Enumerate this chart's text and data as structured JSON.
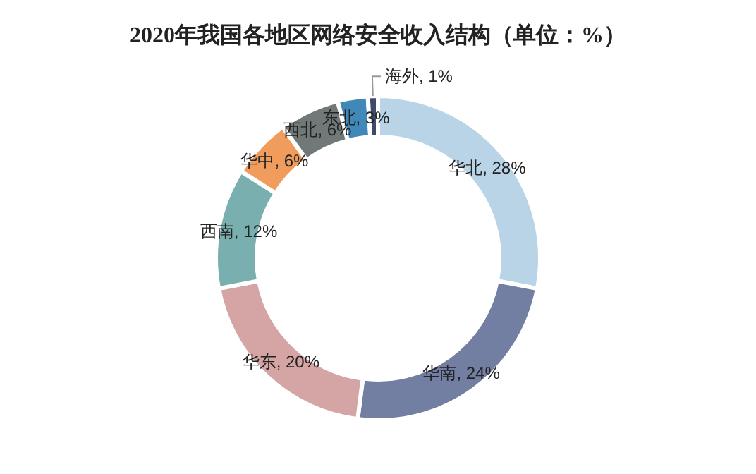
{
  "chart_data": {
    "type": "donut",
    "title": "2020年我国各地区网络安全收入结构（单位：%）",
    "categories": [
      "华北",
      "华南",
      "华东",
      "西南",
      "华中",
      "西北",
      "东北",
      "海外"
    ],
    "values": [
      28,
      24,
      20,
      12,
      6,
      6,
      3,
      1
    ],
    "value_labels": [
      "28%",
      "24%",
      "20%",
      "12%",
      "6%",
      "6%",
      "3%",
      "1%"
    ],
    "colors": [
      "#b8d4e6",
      "#737ea3",
      "#d4a5a4",
      "#7aafaf",
      "#f09c5c",
      "#717878",
      "#3f88b8",
      "#3d4a6b"
    ],
    "legend": false
  }
}
